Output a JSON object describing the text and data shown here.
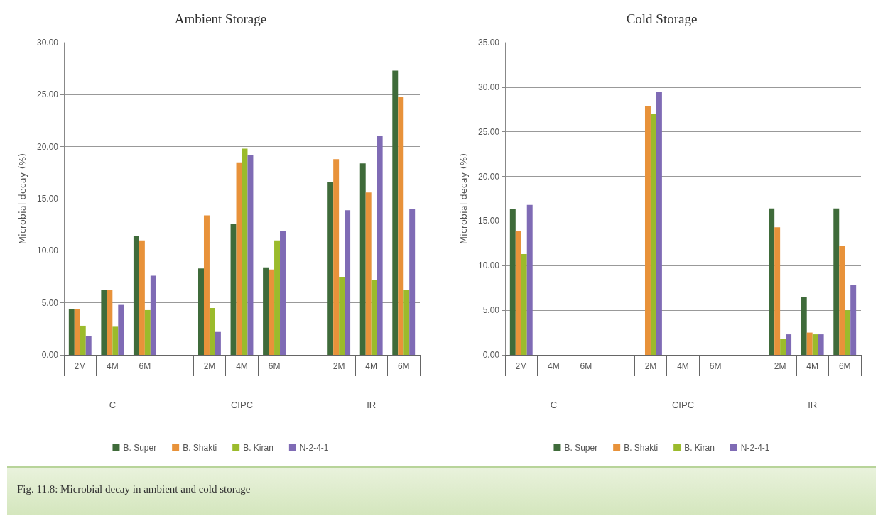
{
  "chart_data": [
    {
      "type": "bar",
      "title": "Ambient Storage",
      "ylabel": "Microbial decay (%)",
      "categories": [
        "2M",
        "4M",
        "6M",
        null,
        "2M",
        "4M",
        "6M",
        null,
        "2M",
        "4M",
        "6M"
      ],
      "series": [
        {
          "name": "B. Super",
          "color": "#3f6b3a",
          "values": [
            4.4,
            6.2,
            11.4,
            null,
            8.3,
            12.6,
            8.4,
            null,
            16.6,
            18.4,
            27.3
          ]
        },
        {
          "name": "B. Shakti",
          "color": "#e8923a",
          "values": [
            4.4,
            6.2,
            11.0,
            null,
            13.4,
            18.5,
            8.2,
            null,
            18.8,
            15.6,
            24.8
          ]
        },
        {
          "name": "B. Kiran",
          "color": "#9bbb2c",
          "values": [
            2.8,
            2.7,
            4.3,
            null,
            4.5,
            19.8,
            11.0,
            null,
            7.5,
            7.2,
            6.2
          ]
        },
        {
          "name": "N-2-4-1",
          "color": "#7f6bb5",
          "values": [
            1.8,
            4.8,
            7.6,
            null,
            2.2,
            19.2,
            11.9,
            null,
            13.9,
            21.0,
            14.0
          ]
        }
      ],
      "ylim": [
        0,
        30
      ],
      "yticks": [
        {
          "value": 0,
          "label": "0.00"
        },
        {
          "value": 5,
          "label": "5.00"
        },
        {
          "value": 10,
          "label": "10.00"
        },
        {
          "value": 15,
          "label": "15.00"
        },
        {
          "value": 20,
          "label": "20.00"
        },
        {
          "value": 25,
          "label": "25.00"
        },
        {
          "value": 30,
          "label": "30.00"
        }
      ],
      "grid": "y",
      "legend": "bottom",
      "annotations": [
        "C",
        "CIPC",
        "IR",
        "Fig. 11.8: Microbial decay in ambient and cold storage"
      ]
    },
    {
      "type": "bar",
      "title": "Cold Storage",
      "ylabel": "Microbial decay (%)",
      "categories": [
        "2M",
        "4M",
        "6M",
        null,
        "2M",
        "4M",
        "6M",
        null,
        "2M",
        "4M",
        "6M"
      ],
      "series": [
        {
          "name": "B. Super",
          "color": "#3f6b3a",
          "values": [
            16.3,
            null,
            null,
            null,
            null,
            null,
            null,
            null,
            16.4,
            6.5,
            16.4
          ]
        },
        {
          "name": "B. Shakti",
          "color": "#e8923a",
          "values": [
            13.9,
            null,
            null,
            null,
            27.9,
            null,
            null,
            null,
            14.3,
            2.5,
            12.2
          ]
        },
        {
          "name": "B. Kiran",
          "color": "#9bbb2c",
          "values": [
            11.3,
            null,
            null,
            null,
            27.0,
            null,
            null,
            null,
            1.8,
            2.3,
            5.0
          ]
        },
        {
          "name": "N-2-4-1",
          "color": "#7f6bb5",
          "values": [
            16.8,
            null,
            null,
            null,
            29.5,
            null,
            null,
            null,
            2.3,
            2.3,
            7.8
          ]
        }
      ],
      "ylim": [
        0,
        35
      ],
      "yticks": [
        {
          "value": 0,
          "label": "0.00"
        },
        {
          "value": 5,
          "label": "5.00"
        },
        {
          "value": 10,
          "label": "10.00"
        },
        {
          "value": 15,
          "label": "15.00"
        },
        {
          "value": 20,
          "label": "20.00"
        },
        {
          "value": 25,
          "label": "25.00"
        },
        {
          "value": 30,
          "label": "30.00"
        },
        {
          "value": 35,
          "label": "35.00"
        }
      ],
      "grid": "y",
      "legend": "bottom",
      "annotations": [
        "C",
        "CIPC",
        "IR"
      ]
    }
  ]
}
